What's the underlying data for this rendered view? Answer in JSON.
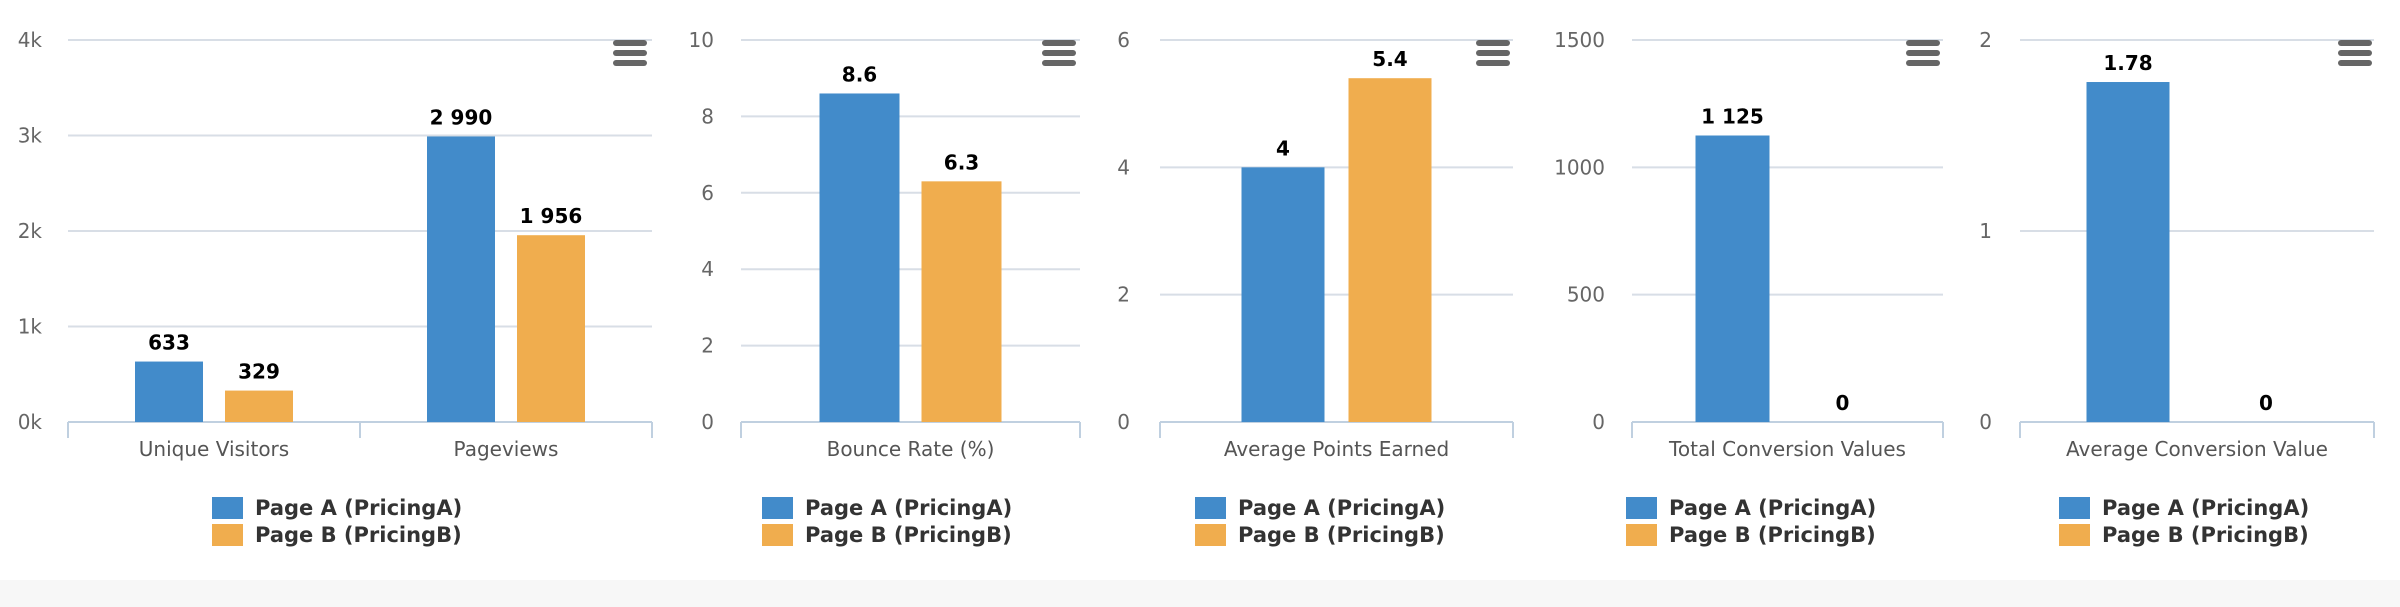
{
  "colors": {
    "page_a": "#428bca",
    "page_b": "#f0ad4e",
    "grid": "#d8dee6",
    "axis": "#c0d0e0"
  },
  "legend": [
    {
      "label": "Page A (PricingA)",
      "color": "#428bca"
    },
    {
      "label": "Page B (PricingB)",
      "color": "#f0ad4e"
    }
  ],
  "menu_icon": "hamburger-menu-icon",
  "chart_data": [
    {
      "type": "bar",
      "categories": [
        "Unique Visitors",
        "Pageviews"
      ],
      "ylim": [
        0,
        4000
      ],
      "yticks": [
        "0k",
        "1k",
        "2k",
        "3k",
        "4k"
      ],
      "series": [
        {
          "name": "Page A (PricingA)",
          "values": [
            633,
            2990
          ],
          "labels": [
            "633",
            "2 990"
          ]
        },
        {
          "name": "Page B (PricingB)",
          "values": [
            329,
            1956
          ],
          "labels": [
            "329",
            "1 956"
          ]
        }
      ]
    },
    {
      "type": "bar",
      "categories": [
        "Bounce Rate (%)"
      ],
      "ylim": [
        0,
        10
      ],
      "yticks": [
        "0",
        "2",
        "4",
        "6",
        "8",
        "10"
      ],
      "series": [
        {
          "name": "Page A (PricingA)",
          "values": [
            8.6
          ],
          "labels": [
            "8.6"
          ]
        },
        {
          "name": "Page B (PricingB)",
          "values": [
            6.3
          ],
          "labels": [
            "6.3"
          ]
        }
      ]
    },
    {
      "type": "bar",
      "categories": [
        "Average Points Earned"
      ],
      "ylim": [
        0,
        6
      ],
      "yticks": [
        "0",
        "2",
        "4",
        "6"
      ],
      "series": [
        {
          "name": "Page A (PricingA)",
          "values": [
            4
          ],
          "labels": [
            "4"
          ]
        },
        {
          "name": "Page B (PricingB)",
          "values": [
            5.4
          ],
          "labels": [
            "5.4"
          ]
        }
      ]
    },
    {
      "type": "bar",
      "categories": [
        "Total Conversion Values"
      ],
      "ylim": [
        0,
        1500
      ],
      "yticks": [
        "0",
        "500",
        "1000",
        "1500"
      ],
      "series": [
        {
          "name": "Page A (PricingA)",
          "values": [
            1125
          ],
          "labels": [
            "1 125"
          ]
        },
        {
          "name": "Page B (PricingB)",
          "values": [
            0
          ],
          "labels": [
            "0"
          ]
        }
      ]
    },
    {
      "type": "bar",
      "categories": [
        "Average Conversion Value"
      ],
      "ylim": [
        0,
        2
      ],
      "yticks": [
        "0",
        "1",
        "2"
      ],
      "series": [
        {
          "name": "Page A (PricingA)",
          "values": [
            1.78
          ],
          "labels": [
            "1.78"
          ]
        },
        {
          "name": "Page B (PricingB)",
          "values": [
            0
          ],
          "labels": [
            "0"
          ]
        }
      ]
    }
  ]
}
